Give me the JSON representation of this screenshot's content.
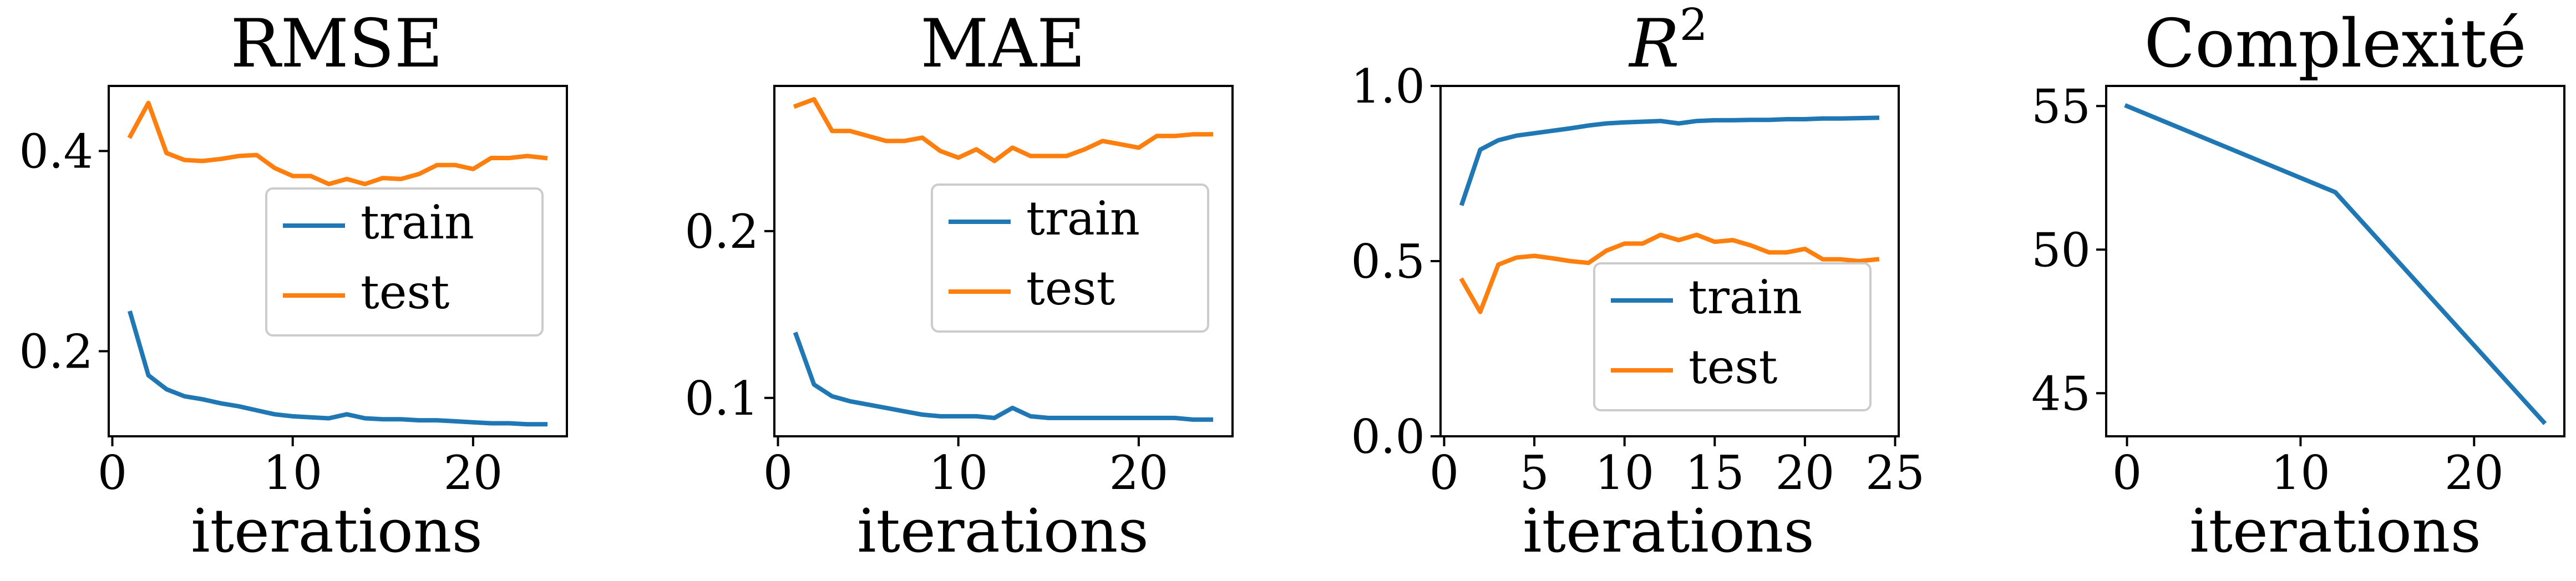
{
  "colors": {
    "train": "#1f77b4",
    "test": "#ff7f0e",
    "axes": "#000000",
    "legend_border": "#cccccc"
  },
  "chart_data": [
    {
      "type": "line",
      "title": "RMSE",
      "xlabel": "iterations",
      "ylabel": "",
      "xlim": [
        -0.2,
        25.2
      ],
      "ylim": [
        0.115,
        0.465
      ],
      "xticks": [
        0,
        10,
        20
      ],
      "xtick_labels": [
        "0",
        "10",
        "20"
      ],
      "yticks": [
        0.2,
        0.4
      ],
      "ytick_labels": [
        "0.2",
        "0.4"
      ],
      "grid": false,
      "legend": "center-right",
      "series": [
        {
          "name": "train",
          "x": [
            1,
            2,
            3,
            4,
            5,
            6,
            7,
            8,
            9,
            10,
            11,
            12,
            13,
            14,
            15,
            16,
            17,
            18,
            19,
            20,
            21,
            22,
            23,
            24
          ],
          "y": [
            0.238,
            0.176,
            0.162,
            0.155,
            0.152,
            0.148,
            0.145,
            0.141,
            0.137,
            0.135,
            0.134,
            0.133,
            0.137,
            0.133,
            0.132,
            0.132,
            0.131,
            0.131,
            0.13,
            0.129,
            0.128,
            0.128,
            0.127,
            0.127
          ]
        },
        {
          "name": "test",
          "x": [
            1,
            2,
            3,
            4,
            5,
            6,
            7,
            8,
            9,
            10,
            11,
            12,
            13,
            14,
            15,
            16,
            17,
            18,
            19,
            20,
            21,
            22,
            23,
            24
          ],
          "y": [
            0.415,
            0.448,
            0.398,
            0.391,
            0.39,
            0.392,
            0.395,
            0.396,
            0.383,
            0.375,
            0.375,
            0.367,
            0.372,
            0.367,
            0.373,
            0.372,
            0.377,
            0.386,
            0.386,
            0.382,
            0.393,
            0.393,
            0.395,
            0.393
          ]
        }
      ]
    },
    {
      "type": "line",
      "title": "MAE",
      "xlabel": "iterations",
      "ylabel": "",
      "xlim": [
        -0.2,
        25.2
      ],
      "ylim": [
        0.077,
        0.287
      ],
      "xticks": [
        0,
        10,
        20
      ],
      "xtick_labels": [
        "0",
        "10",
        "20"
      ],
      "yticks": [
        0.1,
        0.2
      ],
      "ytick_labels": [
        "0.1",
        "0.2"
      ],
      "grid": false,
      "legend": "center-right",
      "series": [
        {
          "name": "train",
          "x": [
            1,
            2,
            3,
            4,
            5,
            6,
            7,
            8,
            9,
            10,
            11,
            12,
            13,
            14,
            15,
            16,
            17,
            18,
            19,
            20,
            21,
            22,
            23,
            24
          ],
          "y": [
            0.138,
            0.108,
            0.101,
            0.098,
            0.096,
            0.094,
            0.092,
            0.09,
            0.089,
            0.089,
            0.089,
            0.088,
            0.094,
            0.089,
            0.088,
            0.088,
            0.088,
            0.088,
            0.088,
            0.088,
            0.088,
            0.088,
            0.087,
            0.087
          ]
        },
        {
          "name": "test",
          "x": [
            1,
            2,
            3,
            4,
            5,
            6,
            7,
            8,
            9,
            10,
            11,
            12,
            13,
            14,
            15,
            16,
            17,
            18,
            19,
            20,
            21,
            22,
            23,
            24
          ],
          "y": [
            0.275,
            0.279,
            0.26,
            0.26,
            0.257,
            0.254,
            0.254,
            0.256,
            0.248,
            0.244,
            0.249,
            0.242,
            0.25,
            0.245,
            0.245,
            0.245,
            0.249,
            0.254,
            0.252,
            0.25,
            0.257,
            0.257,
            0.258,
            0.258
          ]
        }
      ]
    },
    {
      "type": "line",
      "title": "R",
      "title_sup": "2",
      "xlabel": "iterations",
      "ylabel": "",
      "xlim": [
        -0.2,
        25.2
      ],
      "ylim": [
        0.0,
        1.0
      ],
      "xticks": [
        0,
        5,
        10,
        15,
        20,
        25
      ],
      "xtick_labels": [
        "0",
        "5",
        "10",
        "15",
        "20",
        "25"
      ],
      "yticks": [
        0.0,
        0.5,
        1.0
      ],
      "ytick_labels": [
        "0.0",
        "0.5",
        "1.0"
      ],
      "grid": false,
      "legend": "lower-right",
      "series": [
        {
          "name": "train",
          "x": [
            1,
            2,
            3,
            4,
            5,
            6,
            7,
            8,
            9,
            10,
            11,
            12,
            13,
            14,
            15,
            16,
            17,
            18,
            19,
            20,
            21,
            22,
            23,
            24
          ],
          "y": [
            0.665,
            0.818,
            0.845,
            0.858,
            0.865,
            0.872,
            0.879,
            0.887,
            0.893,
            0.896,
            0.898,
            0.9,
            0.893,
            0.9,
            0.902,
            0.902,
            0.903,
            0.903,
            0.905,
            0.905,
            0.907,
            0.907,
            0.908,
            0.909
          ]
        },
        {
          "name": "test",
          "x": [
            1,
            2,
            3,
            4,
            5,
            6,
            7,
            8,
            9,
            10,
            11,
            12,
            13,
            14,
            15,
            16,
            17,
            18,
            19,
            20,
            21,
            22,
            23,
            24
          ],
          "y": [
            0.445,
            0.355,
            0.49,
            0.51,
            0.515,
            0.508,
            0.5,
            0.495,
            0.53,
            0.55,
            0.55,
            0.575,
            0.56,
            0.575,
            0.555,
            0.56,
            0.545,
            0.525,
            0.525,
            0.535,
            0.505,
            0.505,
            0.5,
            0.505
          ]
        }
      ]
    },
    {
      "type": "line",
      "title": "Complexité",
      "xlabel": "iterations",
      "ylabel": "",
      "xlim": [
        -1.2,
        25.2
      ],
      "ylim": [
        43.5,
        55.7
      ],
      "xticks": [
        0,
        10,
        20
      ],
      "xtick_labels": [
        "0",
        "10",
        "20"
      ],
      "yticks": [
        45,
        50,
        55
      ],
      "ytick_labels": [
        "45",
        "50",
        "55"
      ],
      "grid": false,
      "legend": "none",
      "series": [
        {
          "x": [
            0,
            12,
            24
          ],
          "y": [
            55,
            52,
            44
          ]
        }
      ]
    }
  ]
}
